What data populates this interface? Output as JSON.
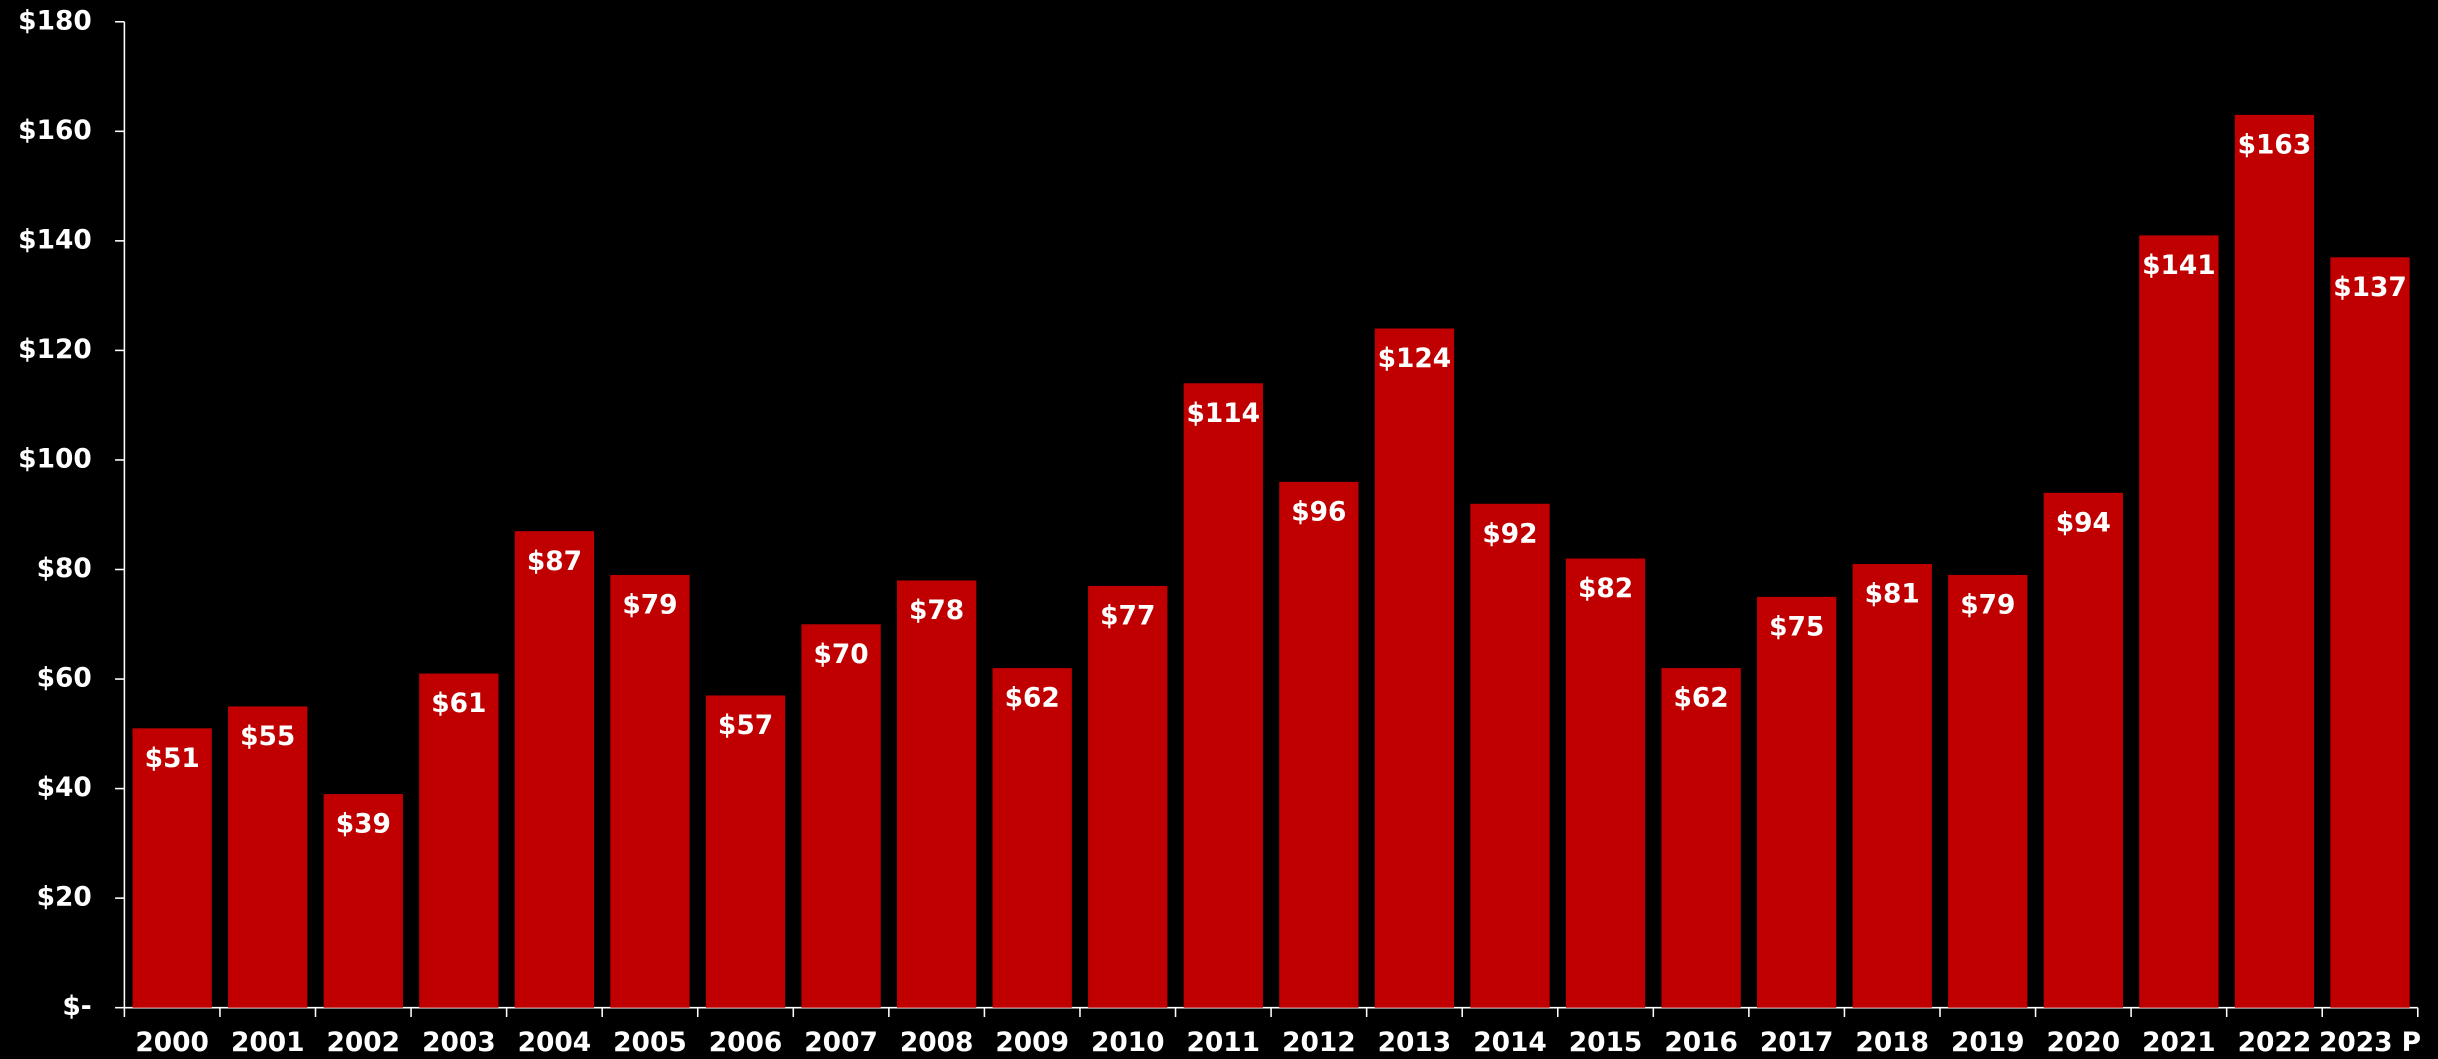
{
  "chart_data": {
    "type": "bar",
    "categories": [
      "2000",
      "2001",
      "2002",
      "2003",
      "2004",
      "2005",
      "2006",
      "2007",
      "2008",
      "2009",
      "2010",
      "2011",
      "2012",
      "2013",
      "2014",
      "2015",
      "2016",
      "2017",
      "2018",
      "2019",
      "2020",
      "2021",
      "2022",
      "2023 P"
    ],
    "values": [
      51,
      55,
      39,
      61,
      87,
      79,
      57,
      70,
      78,
      62,
      77,
      114,
      96,
      124,
      92,
      82,
      62,
      75,
      81,
      79,
      94,
      141,
      163,
      137
    ],
    "value_labels": [
      "$51",
      "$55",
      "$39",
      "$61",
      "$87",
      "$79",
      "$57",
      "$70",
      "$78",
      "$62",
      "$77",
      "$114",
      "$96",
      "$124",
      "$92",
      "$82",
      "$62",
      "$75",
      "$81",
      "$79",
      "$94",
      "$141",
      "$163",
      "$137"
    ],
    "color": "#c00000",
    "ylim": [
      0,
      180
    ],
    "yticks": [
      {
        "value": 0,
        "label": "$-"
      },
      {
        "value": 20,
        "label": "$20"
      },
      {
        "value": 40,
        "label": "$40"
      },
      {
        "value": 60,
        "label": "$60"
      },
      {
        "value": 80,
        "label": "$80"
      },
      {
        "value": 100,
        "label": "$100"
      },
      {
        "value": 120,
        "label": "$120"
      },
      {
        "value": 140,
        "label": "$140"
      },
      {
        "value": 160,
        "label": "$160"
      },
      {
        "value": 180,
        "label": "$180"
      }
    ]
  }
}
